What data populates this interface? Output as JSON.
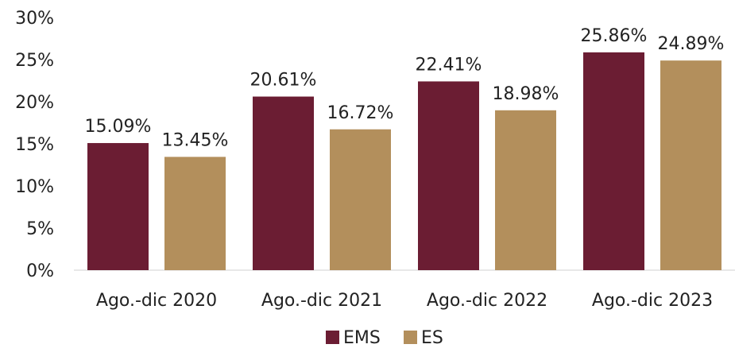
{
  "chart_data": {
    "type": "bar",
    "categories": [
      "Ago.-dic 2020",
      "Ago.-dic 2021",
      "Ago.-dic 2022",
      "Ago.-dic 2023"
    ],
    "series": [
      {
        "name": "EMS",
        "color": "#6b1d33",
        "values": [
          15.09,
          20.61,
          22.41,
          25.86
        ],
        "labels": [
          "15.09%",
          "20.61%",
          "22.41%",
          "25.86%"
        ]
      },
      {
        "name": "ES",
        "color": "#b38f5c",
        "values": [
          13.45,
          16.72,
          18.98,
          24.89
        ],
        "labels": [
          "13.45%",
          "16.72%",
          "18.98%",
          "24.89%"
        ]
      }
    ],
    "yticks": [
      0,
      5,
      10,
      15,
      20,
      25,
      30
    ],
    "ytick_labels": [
      "0%",
      "5%",
      "10%",
      "15%",
      "20%",
      "25%",
      "30%"
    ],
    "ylim": [
      0,
      30
    ],
    "xlabel": "",
    "ylabel": "",
    "title": "",
    "grid": false,
    "legend_position": "bottom-center"
  }
}
